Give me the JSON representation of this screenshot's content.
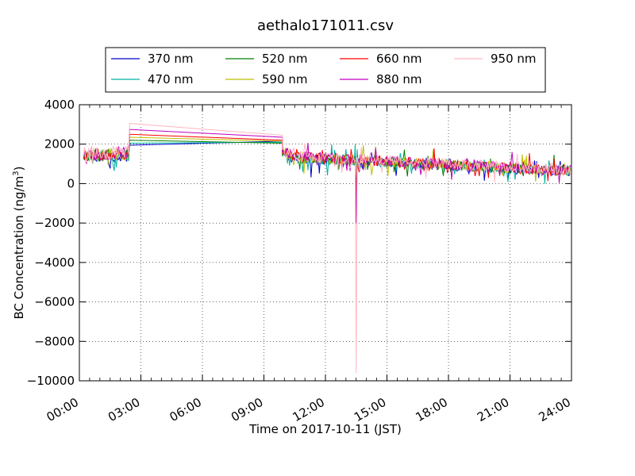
{
  "chart_data": {
    "type": "line",
    "title": "aethalo171011.csv",
    "xlabel": "Time on 2017-10-11 (JST)",
    "ylabel_main": "BC Concentration (ng/m",
    "ylabel_sup": "3",
    "ylabel_close": ")",
    "xlim_hours": [
      0,
      24
    ],
    "ylim": [
      -10000,
      4000
    ],
    "grid": true,
    "legend_position": "top-center",
    "x_ticks": [
      {
        "hour": 0,
        "label": "00:00"
      },
      {
        "hour": 3,
        "label": "03:00"
      },
      {
        "hour": 6,
        "label": "06:00"
      },
      {
        "hour": 9,
        "label": "09:00"
      },
      {
        "hour": 12,
        "label": "12:00"
      },
      {
        "hour": 15,
        "label": "15:00"
      },
      {
        "hour": 18,
        "label": "18:00"
      },
      {
        "hour": 21,
        "label": "21:00"
      },
      {
        "hour": 24,
        "label": "24:00"
      }
    ],
    "y_ticks": [
      {
        "value": 4000,
        "label": "4000"
      },
      {
        "value": 2000,
        "label": "2000"
      },
      {
        "value": 0,
        "label": "0"
      },
      {
        "value": -2000,
        "label": "−2000"
      },
      {
        "value": -4000,
        "label": "−4000"
      },
      {
        "value": -6000,
        "label": "−6000"
      },
      {
        "value": -8000,
        "label": "−8000"
      },
      {
        "value": -10000,
        "label": "−10000"
      }
    ],
    "series": [
      {
        "name": "370 nm",
        "color": "#0000cc",
        "gap_start": 1950,
        "gap_end": 2150,
        "scale": 1.0,
        "spike_min": -1000,
        "spike_max": 1700,
        "seed": 11
      },
      {
        "name": "470 nm",
        "color": "#00b3a0",
        "gap_start": 2050,
        "gap_end": 2100,
        "scale": 1.02,
        "spike_min": -1200,
        "spike_max": 2000,
        "seed": 23
      },
      {
        "name": "520 nm",
        "color": "#008000",
        "gap_start": 2200,
        "gap_end": 2050,
        "scale": 1.04,
        "spike_min": -900,
        "spike_max": 1400,
        "seed": 37
      },
      {
        "name": "590 nm",
        "color": "#bfbf00",
        "gap_start": 2350,
        "gap_end": 2150,
        "scale": 1.06,
        "spike_min": -1500,
        "spike_max": 1200,
        "seed": 41
      },
      {
        "name": "660 nm",
        "color": "#ff0000",
        "gap_start": 2500,
        "gap_end": 2200,
        "scale": 1.08,
        "spike_min": -700,
        "spike_max": 1100,
        "seed": 53
      },
      {
        "name": "880 nm",
        "color": "#bf00bf",
        "gap_start": 2750,
        "gap_end": 2350,
        "scale": 1.1,
        "spike_min": -2000,
        "spike_max": 1000,
        "seed": 67
      },
      {
        "name": "950 nm",
        "color": "#ffb6c1",
        "gap_start": 3050,
        "gap_end": 2450,
        "scale": 1.12,
        "spike_min": -9600,
        "spike_max": 900,
        "seed": 79
      }
    ],
    "profile": {
      "segment1_hours": [
        0.2,
        2.4
      ],
      "segment1_level": 1400,
      "gap_hours": [
        2.4,
        9.9
      ],
      "segment2_start_hour": 9.9,
      "segment2_level_start": 1300,
      "segment2_level_end": 600,
      "spike_hour": 13.5
    }
  }
}
